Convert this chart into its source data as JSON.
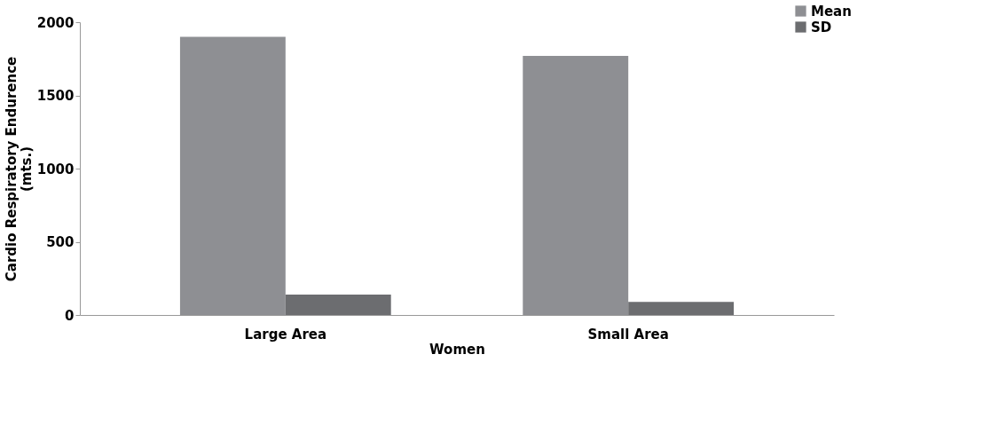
{
  "chart_data": {
    "type": "bar",
    "categories": [
      "Large Area",
      "Small Area"
    ],
    "xlabel": "Women",
    "ylabel": "Cardio Respiratory Endurence\n(mts.)",
    "series": [
      {
        "name": "Mean",
        "color": "#8e8f93",
        "values": [
          1900,
          1770
        ]
      },
      {
        "name": "SD",
        "color": "#6c6d70",
        "values": [
          140,
          90
        ]
      }
    ],
    "ylim": [
      0,
      2000
    ],
    "yticks": [
      0,
      500,
      1000,
      1500,
      2000
    ],
    "grid": false,
    "legend": "top right"
  }
}
